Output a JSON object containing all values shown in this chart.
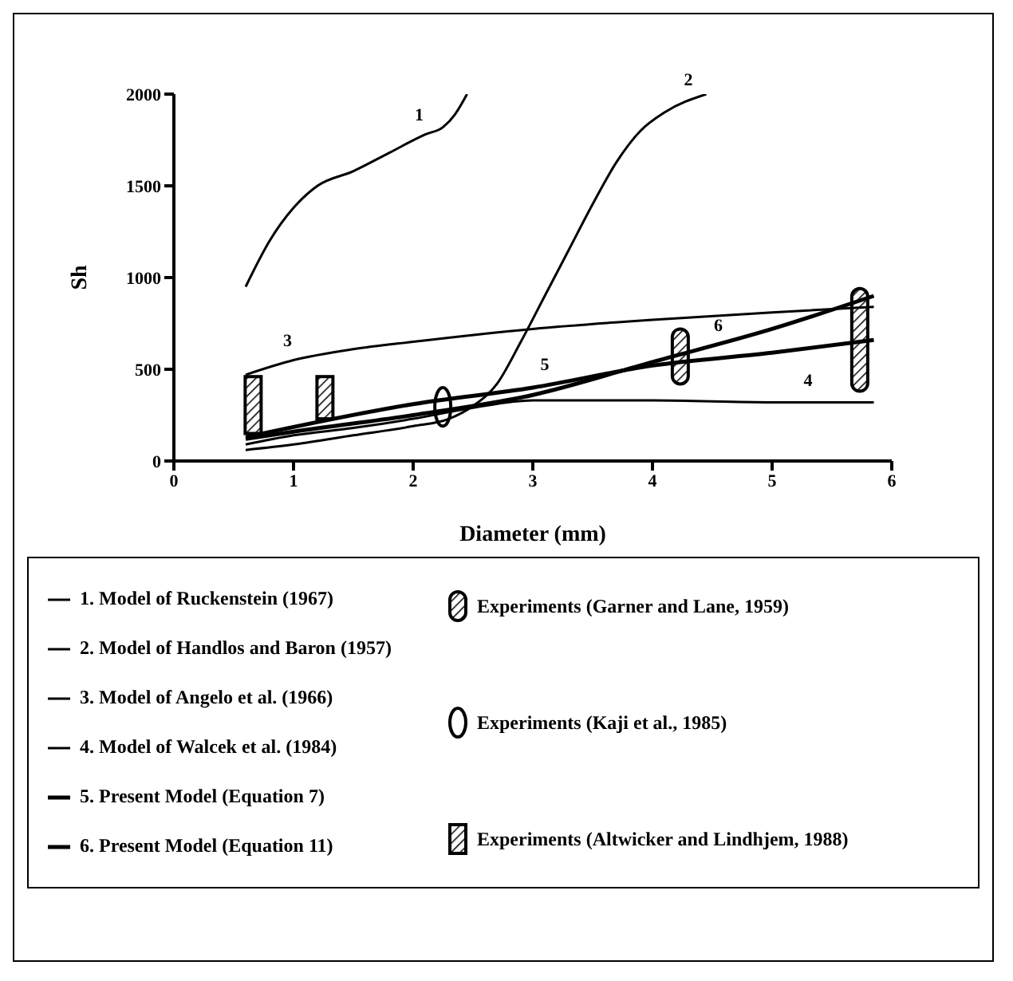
{
  "chart_data": {
    "type": "line",
    "xlabel": "Diameter (mm)",
    "ylabel": "Sh",
    "xlim": [
      0,
      6
    ],
    "xticks": [
      0,
      1,
      2,
      3,
      4,
      5,
      6
    ],
    "ylim": [
      0,
      2000
    ],
    "yticks": [
      0,
      500,
      1000,
      1500,
      2000
    ],
    "grid": false,
    "legend": "bottom",
    "marker": "none",
    "line_style": "solid",
    "series": [
      {
        "name": "1. Model of Ruckenstein (1967)",
        "color": "#000000",
        "x": [
          0.6,
          0.8,
          1.0,
          1.2,
          1.5,
          1.8,
          2.1,
          2.25,
          2.35,
          2.45
        ],
        "values": [
          950,
          1200,
          1380,
          1500,
          1580,
          1680,
          1780,
          1820,
          1890,
          2000
        ]
      },
      {
        "name": "2. Model of Handlos and Baron (1957)",
        "color": "#000000",
        "x": [
          0.6,
          1.0,
          1.5,
          2.0,
          2.3,
          2.5,
          2.7,
          2.9,
          3.1,
          3.3,
          3.5,
          3.7,
          3.9,
          4.1,
          4.45
        ],
        "values": [
          60,
          90,
          140,
          190,
          230,
          300,
          420,
          650,
          900,
          1150,
          1400,
          1630,
          1800,
          1900,
          2000
        ]
      },
      {
        "name": "3. Model of Angelo et al. (1966)",
        "color": "#000000",
        "x": [
          0.6,
          1.0,
          1.5,
          2.0,
          3.0,
          4.0,
          5.0,
          5.85
        ],
        "values": [
          470,
          550,
          610,
          650,
          720,
          770,
          810,
          840
        ]
      },
      {
        "name": "4. Model of Walcek et al. (1984)",
        "color": "#000000",
        "x": [
          0.6,
          1.0,
          1.5,
          2.0,
          2.5,
          3.0,
          4.0,
          5.0,
          5.85
        ],
        "values": [
          90,
          140,
          180,
          230,
          290,
          330,
          330,
          320,
          320
        ]
      },
      {
        "name": "5. Present Model (Equation 7)",
        "color": "#000000",
        "x": [
          0.6,
          2.0,
          3.0,
          4.0,
          5.0,
          5.85
        ],
        "values": [
          130,
          310,
          400,
          520,
          590,
          660
        ]
      },
      {
        "name": "6. Present Model (Equation 11)",
        "color": "#000000",
        "x": [
          0.6,
          1.0,
          2.0,
          3.0,
          4.0,
          5.0,
          5.85
        ],
        "values": [
          120,
          160,
          250,
          360,
          540,
          720,
          900
        ]
      },
      {
        "name": "Experiments (Garner and Lane, 1959)",
        "type": "bar",
        "color": "#000000",
        "x": [
          4.25,
          5.75
        ],
        "base": [
          420,
          380
        ],
        "values": [
          300,
          560
        ]
      },
      {
        "name": "Experiments (Kaji et al., 1985)",
        "type": "bar",
        "marker": "circle",
        "color": "#000000",
        "x": [
          2.25
        ],
        "base": [
          190
        ],
        "values": [
          210
        ]
      },
      {
        "name": "Experiments (Altwicker and Lindhjem, 1988)",
        "type": "bar",
        "marker": "square",
        "color": "#000000",
        "x": [
          0.65,
          1.25
        ],
        "base": [
          150,
          230
        ],
        "values": [
          310,
          230
        ]
      }
    ],
    "annotations": [
      {
        "text": "1",
        "x": 2.05,
        "y": 1770
      },
      {
        "text": "2",
        "x": 4.3,
        "y": 1960
      },
      {
        "text": "3",
        "x": 0.95,
        "y": 540
      },
      {
        "text": "4",
        "x": 5.3,
        "y": 320
      },
      {
        "text": "5",
        "x": 3.1,
        "y": 410
      },
      {
        "text": "6",
        "x": 4.55,
        "y": 620
      }
    ]
  }
}
